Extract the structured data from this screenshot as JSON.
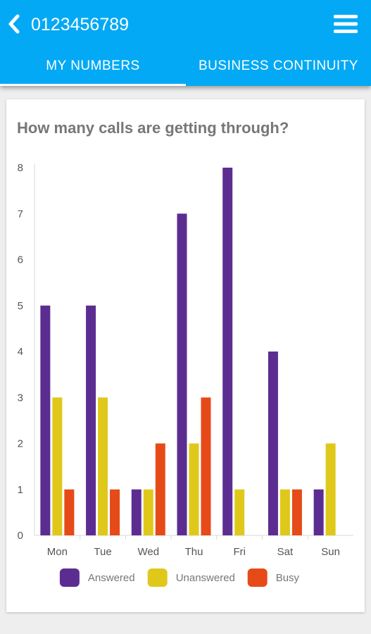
{
  "header": {
    "title": "0123456789",
    "back_icon": "chevron-left-icon",
    "menu_icon": "hamburger-menu-icon",
    "background_color": "#03a9f4"
  },
  "tabs": [
    {
      "label": "MY  NUMBERS",
      "selected": true
    },
    {
      "label": "BUSINESS  CONTINUITY",
      "selected": false
    }
  ],
  "card": {
    "title": "How many calls are getting through?"
  },
  "chart_data": {
    "type": "bar",
    "title": "How many calls are getting through?",
    "categories": [
      "Mon",
      "Tue",
      "Wed",
      "Thu",
      "Fri",
      "Sat",
      "Sun"
    ],
    "series": [
      {
        "name": "Answered",
        "color": "#5c2d91",
        "values": [
          5,
          5,
          1,
          7,
          8,
          4,
          1
        ]
      },
      {
        "name": "Unanswered",
        "color": "#e0c81a",
        "values": [
          3,
          3,
          1,
          2,
          1,
          1,
          2
        ]
      },
      {
        "name": "Busy",
        "color": "#e64a19",
        "values": [
          1,
          1,
          2,
          3,
          0,
          1,
          0
        ]
      }
    ],
    "ylim": [
      0,
      8
    ],
    "yticks": [
      "0",
      "1",
      "2",
      "3",
      "4",
      "5",
      "6",
      "7",
      "8"
    ],
    "legend_position": "bottom",
    "grid": false
  }
}
